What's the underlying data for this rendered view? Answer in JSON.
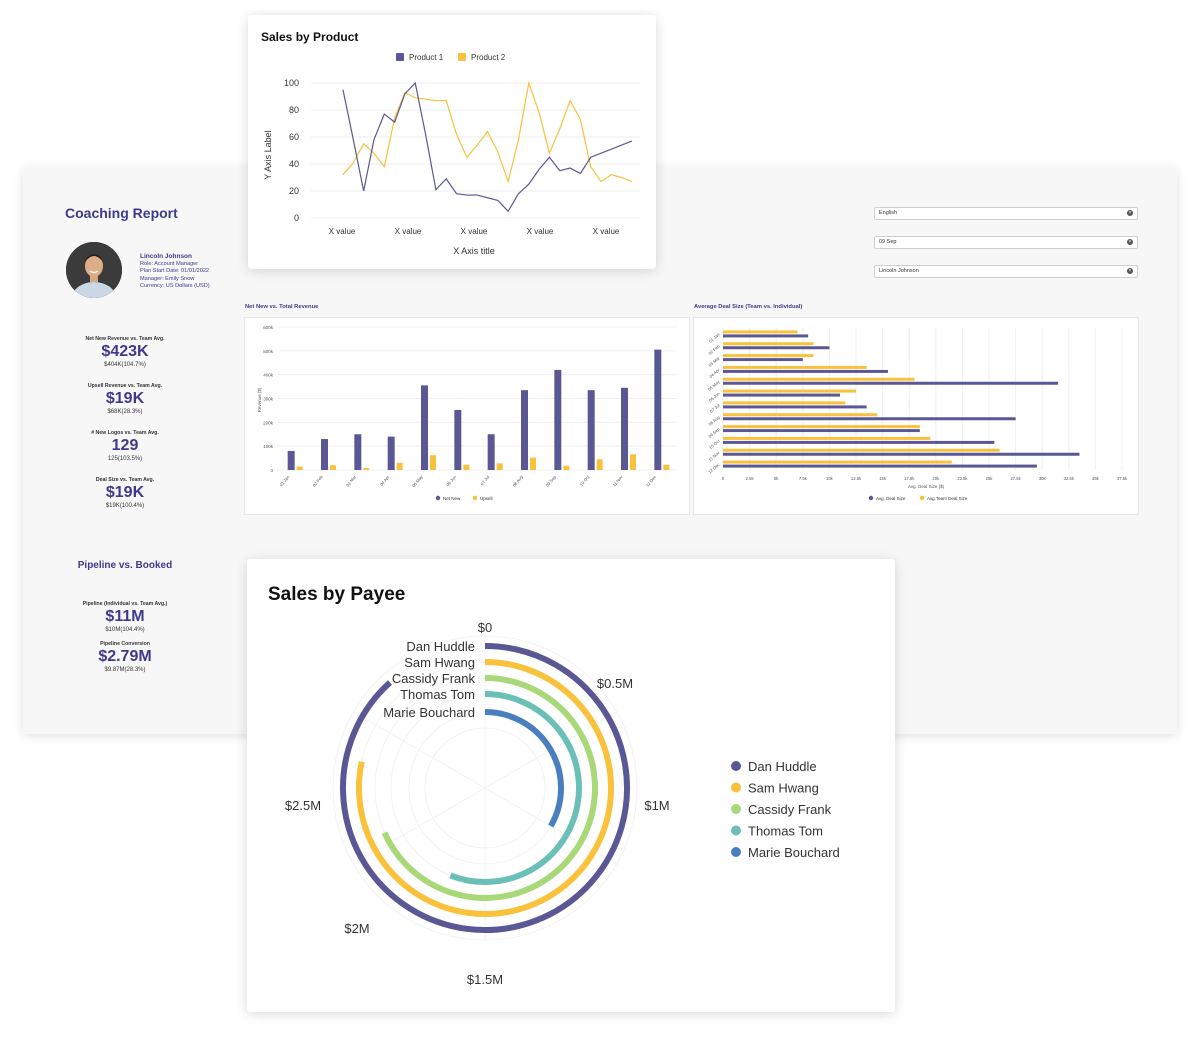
{
  "coaching": {
    "title": "Coaching Report",
    "profile": {
      "name": "Lincoln Johnson",
      "role": "Role: Account Manager",
      "plan_start": "Plan Start Date: 01/01/2022",
      "manager": "Manager: Emily Snow",
      "currency": "Currency: US Dollars (USD)"
    },
    "kpis": [
      {
        "label": "Net New Revenue vs. Team Avg.",
        "value": "$423K",
        "sub": "$404K(104.7%)"
      },
      {
        "label": "Upsell Revenue vs. Team Avg.",
        "value": "$19K",
        "sub": "$68K(28.3%)"
      },
      {
        "label": "# New Logos vs. Team Avg.",
        "value": "129",
        "sub": "125(103.5%)"
      },
      {
        "label": "Deal Size vs. Team Avg.",
        "value": "$19K",
        "sub": "$19K(100.4%)"
      }
    ],
    "pipeline": {
      "title": "Pipeline vs. Booked",
      "items": [
        {
          "label": "Pipeline (Individual vs. Team Avg.)",
          "value": "$11M",
          "sub": "$10M(104.4%)"
        },
        {
          "label": "Pipeline Conversion",
          "value": "$2.79M",
          "sub": "$9.87M(28.3%)"
        }
      ]
    },
    "filters": [
      {
        "value": "English"
      },
      {
        "value": "09 Sep"
      },
      {
        "value": "Lincoln Johnson"
      }
    ]
  },
  "colors": {
    "navy": "#5a5894",
    "gold": "#f9c13c",
    "green": "#a8d877",
    "teal": "#6abfb7",
    "blue": "#4a7fbf",
    "title": "#3d3a8c"
  },
  "chart_data": [
    {
      "type": "line",
      "title": "Sales by Product",
      "xlabel": "X Axis title",
      "ylabel": "Y Axis Label",
      "ylim": [
        0,
        100
      ],
      "yticks": [
        "0",
        "20",
        "40",
        "60",
        "80",
        "100"
      ],
      "xtick_labels": [
        "X value",
        "X value",
        "X value",
        "X value",
        "X value"
      ],
      "x": [
        0,
        1,
        2,
        3,
        4,
        5,
        6,
        7,
        8,
        9,
        10,
        11,
        12,
        13,
        14,
        15,
        16,
        17,
        18,
        19,
        20,
        21,
        22,
        23,
        24,
        25,
        26,
        27,
        28
      ],
      "series": [
        {
          "name": "Product 1",
          "values": [
            95,
            58,
            20,
            58,
            77,
            71,
            92,
            100,
            62,
            21,
            29,
            18,
            17,
            17,
            15,
            13,
            5,
            18,
            25,
            36,
            45,
            35,
            37,
            33,
            45,
            48,
            51,
            54,
            57
          ]
        },
        {
          "name": "Product 2",
          "values": [
            32,
            41,
            55,
            48,
            38,
            74,
            93,
            89,
            88,
            87,
            87,
            62,
            45,
            54,
            64,
            49,
            27,
            58,
            100,
            78,
            48,
            66,
            87,
            73,
            38,
            27,
            32,
            30,
            27
          ]
        }
      ]
    },
    {
      "type": "bar",
      "title": "Net New vs. Total Revenue",
      "ylabel": "Revenue ($)",
      "ylim": [
        0,
        600
      ],
      "yticks": [
        "0",
        "100k",
        "200k",
        "300k",
        "400k",
        "500k",
        "600k"
      ],
      "categories": [
        "01 Jan",
        "02 Feb",
        "03 Mar",
        "04 Apr",
        "05 May",
        "06 Jun",
        "07 Jul",
        "08 Aug",
        "09 Sep",
        "10 Oct",
        "11 Nov",
        "12 Dec"
      ],
      "series": [
        {
          "name": "Net New",
          "values": [
            80,
            130,
            150,
            140,
            355,
            252,
            150,
            335,
            420,
            335,
            345,
            505
          ]
        },
        {
          "name": "Upsell",
          "values": [
            15,
            20,
            8,
            30,
            62,
            22,
            28,
            52,
            18,
            45,
            66,
            22
          ]
        }
      ]
    },
    {
      "type": "bar",
      "orientation": "horizontal",
      "title": "Average Deal Size (Team vs. Individual)",
      "xlabel": "Avg. Deal Size ($)",
      "xlim": [
        0,
        37.5
      ],
      "xticks": [
        "0",
        "2.5k",
        "5k",
        "7.5k",
        "10k",
        "12.5k",
        "15k",
        "17.5k",
        "20k",
        "22.5k",
        "25k",
        "27.5k",
        "30k",
        "32.5k",
        "35k",
        "37.5k"
      ],
      "categories": [
        "01 Jan",
        "02 Feb",
        "03 Mar",
        "04 Apr",
        "05 May",
        "06 Jun",
        "07 Jul",
        "08 Aug",
        "09 Sep",
        "10 Oct",
        "11 Nov",
        "12 Dec"
      ],
      "series": [
        {
          "name": "Avg. Deal Size",
          "values": [
            8,
            10,
            7.5,
            15.5,
            31.5,
            11,
            13.5,
            27.5,
            18.5,
            25.5,
            33.5,
            29.5
          ]
        },
        {
          "name": "Avg.Team Deal Size",
          "values": [
            7,
            8.5,
            8.5,
            13.5,
            18,
            12.5,
            11.5,
            14.5,
            18.5,
            19.5,
            26,
            21.5
          ]
        }
      ]
    },
    {
      "type": "radial-bar",
      "title": "Sales by Payee",
      "axis_ticks": [
        "$0",
        "$0.5M",
        "$1M",
        "$1.5M",
        "$2M",
        "$2.5M"
      ],
      "max": 3,
      "categories": [
        "Dan Huddle",
        "Sam Hwang",
        "Cassidy Frank",
        "Thomas Tom",
        "Marie Bouchard"
      ],
      "values": [
        2.65,
        2.35,
        2.05,
        1.68,
        1.0
      ]
    }
  ]
}
